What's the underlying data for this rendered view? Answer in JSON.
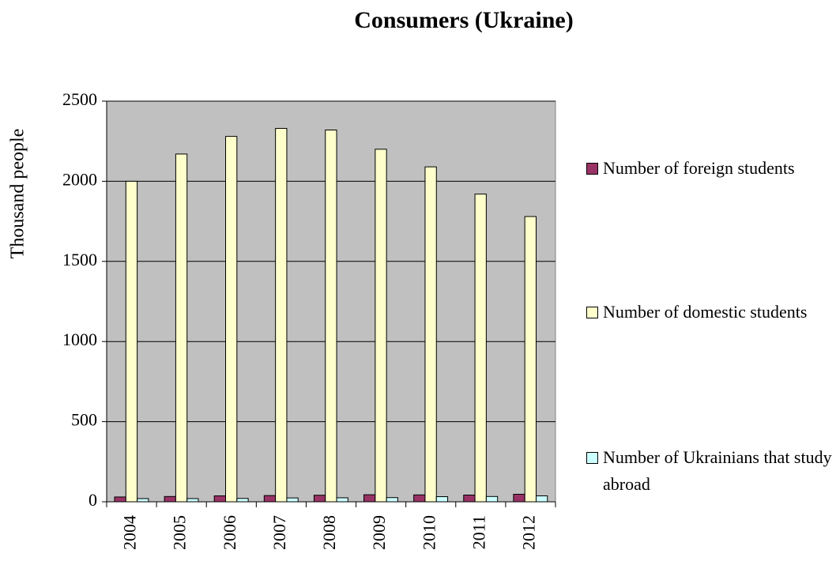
{
  "chart_data": {
    "type": "bar",
    "title": "Consumers (Ukraine)",
    "y_label": "Thousand people",
    "categories": [
      "2004",
      "2005",
      "2006",
      "2007",
      "2008",
      "2009",
      "2010",
      "2011",
      "2012"
    ],
    "series": [
      {
        "name": "Number of foreign students",
        "color": "#993366",
        "values": [
          30,
          33,
          37,
          39,
          41,
          44,
          43,
          42,
          47
        ]
      },
      {
        "name": "Number of domestic students",
        "color": "#ffffcc",
        "values": [
          2000,
          2170,
          2280,
          2330,
          2320,
          2200,
          2090,
          1920,
          1780
        ]
      },
      {
        "name": "Number of Ukrainians that study abroad",
        "color": "#ccffff",
        "values": [
          20,
          20,
          21,
          24,
          25,
          26,
          32,
          33,
          37
        ]
      }
    ],
    "ylim": [
      0,
      2500
    ],
    "yticks": [
      0,
      500,
      1000,
      1500,
      2000,
      2500
    ],
    "grid": true,
    "legend": "right",
    "plot_background": "#c0c0c0"
  }
}
